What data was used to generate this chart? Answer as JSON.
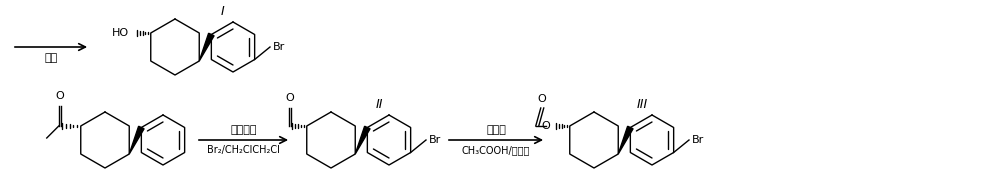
{
  "bg_color": "#ffffff",
  "line_color": "#000000",
  "text_color": "#000000",
  "reaction1_reagent_top": "路易斯酸",
  "reaction1_reagent_bot": "Br₂/CH₂ClCH₂Cl",
  "reaction2_reagent_top": "氧化剂",
  "reaction2_reagent_bot": "CH₃COOH/质子酸",
  "reaction3_reagent": "水解",
  "label_I": "I",
  "label_II": "II",
  "label_III": "III",
  "figsize": [
    10.0,
    1.92
  ],
  "dpi": 100
}
